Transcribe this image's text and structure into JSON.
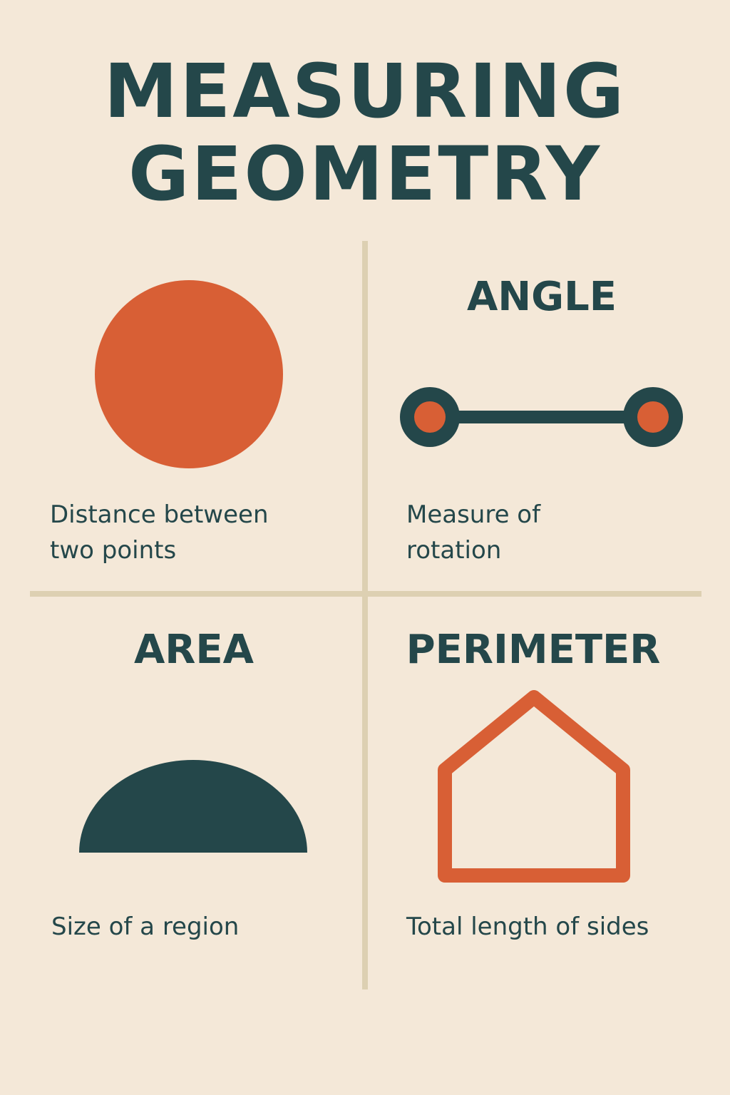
{
  "title": {
    "line1": "MEASURING",
    "line2": "GEOMETRY"
  },
  "quadrants": {
    "distance": {
      "caption_line1": "Distance between",
      "caption_line2": "two points",
      "icon": "circle-icon"
    },
    "angle": {
      "heading": "ANGLE",
      "caption_line1": "Measure of",
      "caption_line2": "rotation",
      "icon": "segment-icon"
    },
    "area": {
      "heading": "AREA",
      "caption": "Size of a region",
      "icon": "semicircle-icon"
    },
    "perimeter": {
      "heading": "PERIMETER",
      "caption": "Total length of sides",
      "icon": "house-outline-icon"
    }
  },
  "colors": {
    "background": "#f4e8d8",
    "primary": "#24474a",
    "accent": "#d85f35",
    "divider": "#ddd0b2"
  }
}
